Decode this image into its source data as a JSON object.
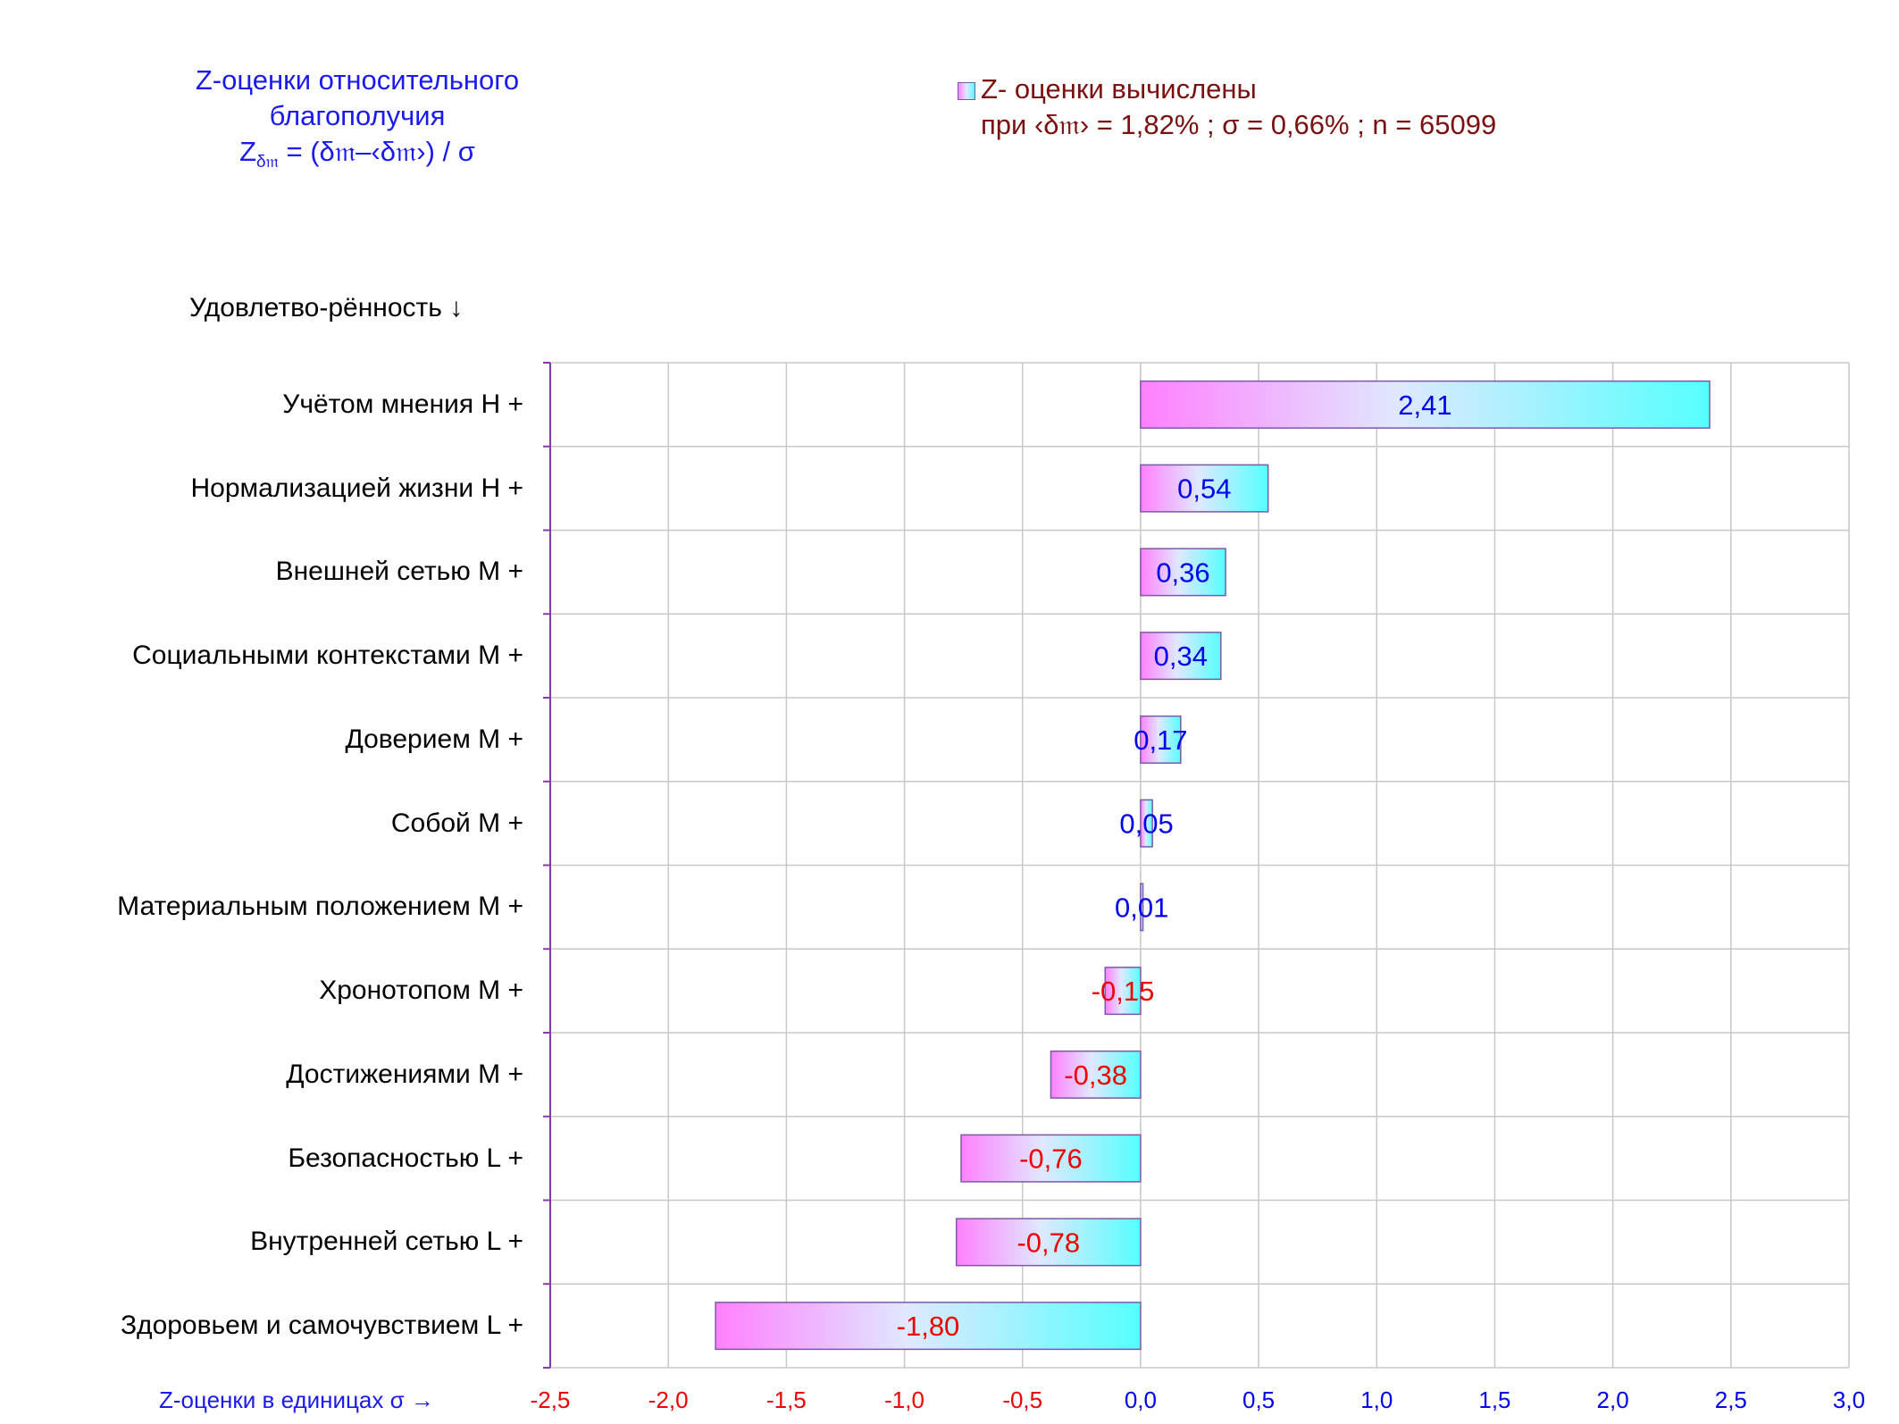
{
  "chart_data": {
    "type": "bar",
    "orientation": "horizontal",
    "title_lines": [
      "Z-оценки  относительного",
      "благополучия"
    ],
    "formula": {
      "z": "Z",
      "z_sub": "δ𝔪",
      "rest": " = (δ𝔪–‹δ𝔪›)  / σ"
    },
    "legend": {
      "line1": "Z- оценки вычислены",
      "line2": "при ‹δ𝔪› = 1,82% ; σ = 0,66% ; n = 65099",
      "position": "top-right"
    },
    "ylabel": "Удовлетво-рённость ↓",
    "xlabel": "Z-оценки в единицах σ →",
    "xlim": [
      -2.5,
      3.0
    ],
    "xticks": [
      "-2,5",
      "-2,0",
      "-1,5",
      "-1,0",
      "-0,5",
      "0,0",
      "0,5",
      "1,0",
      "1,5",
      "2,0",
      "2,5",
      "3,0"
    ],
    "categories": [
      "Учётом мнения  Н +",
      "Нормализацией жизни  Н +",
      "Внешней сетью  М +",
      "Социальными контекстами  М +",
      "Доверием  М +",
      "Собой  М +",
      "Материальным положением  М +",
      "Хронотопом  М +",
      "Достижениями  М +",
      "Безопасностью  L +",
      "Внутренней сетью  L +",
      "Здоровьем и самочувствием  L +"
    ],
    "values": [
      2.41,
      0.54,
      0.36,
      0.34,
      0.17,
      0.05,
      0.01,
      -0.15,
      -0.38,
      -0.76,
      -0.78,
      -1.8
    ],
    "value_labels": [
      "2,41",
      "0,54",
      "0,36",
      "0,34",
      "0,17",
      "0,05",
      "0,01",
      "-0,15",
      "-0,38",
      "-0,76",
      "-0,78",
      "-1,80"
    ],
    "grid": true,
    "colors": {
      "bar_gradient_start": "#ff80ff",
      "bar_gradient_mid": "#e0e8ff",
      "bar_gradient_end": "#55ffff",
      "bar_border": "#7a5aa8",
      "positive_label": "#0000ee",
      "negative_label": "#ee0000",
      "grid": "#c8c8c8",
      "axis": "#8a3aa8",
      "title": "#1a1aee",
      "legend_text": "#7a1010"
    }
  }
}
